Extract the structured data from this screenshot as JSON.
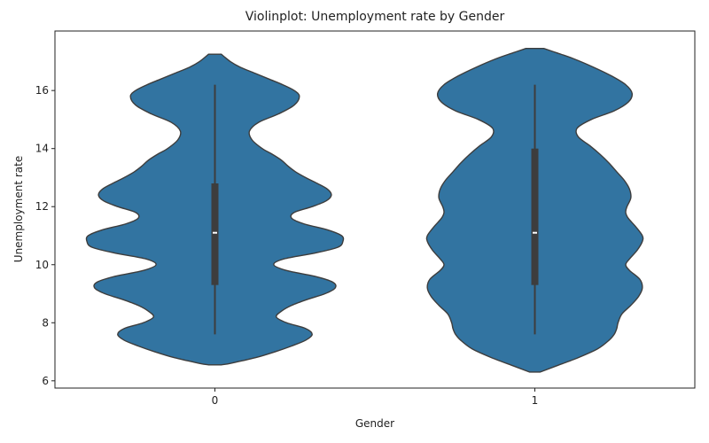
{
  "chart_data": {
    "type": "violin",
    "title": "Violinplot: Unemployment rate by Gender",
    "xlabel": "Gender",
    "ylabel": "Unemployment rate",
    "categories": [
      "0",
      "1"
    ],
    "ylim": [
      5.75,
      18.05
    ],
    "yticks": [
      6,
      8,
      10,
      12,
      14,
      16
    ],
    "grid": false,
    "fill_color": "#3274a1",
    "edge_color": "#3d3d3d",
    "violins": [
      {
        "category": "0",
        "whisker_low": 7.6,
        "q1": 9.3,
        "median": 11.1,
        "q3": 12.8,
        "whisker_high": 16.2,
        "density_profile": [
          [
            6.55,
            0.05
          ],
          [
            6.6,
            0.12
          ],
          [
            6.8,
            0.32
          ],
          [
            7.0,
            0.47
          ],
          [
            7.2,
            0.6
          ],
          [
            7.4,
            0.71
          ],
          [
            7.6,
            0.76
          ],
          [
            7.8,
            0.71
          ],
          [
            8.0,
            0.56
          ],
          [
            8.2,
            0.48
          ],
          [
            8.4,
            0.52
          ],
          [
            8.6,
            0.6
          ],
          [
            8.8,
            0.72
          ],
          [
            9.0,
            0.86
          ],
          [
            9.2,
            0.94
          ],
          [
            9.4,
            0.92
          ],
          [
            9.6,
            0.78
          ],
          [
            9.8,
            0.56
          ],
          [
            10.0,
            0.46
          ],
          [
            10.2,
            0.54
          ],
          [
            10.4,
            0.78
          ],
          [
            10.6,
            0.96
          ],
          [
            10.8,
            1.0
          ],
          [
            11.0,
            0.99
          ],
          [
            11.2,
            0.88
          ],
          [
            11.4,
            0.7
          ],
          [
            11.6,
            0.6
          ],
          [
            11.8,
            0.62
          ],
          [
            12.0,
            0.76
          ],
          [
            12.2,
            0.87
          ],
          [
            12.4,
            0.91
          ],
          [
            12.6,
            0.88
          ],
          [
            12.8,
            0.8
          ],
          [
            13.0,
            0.71
          ],
          [
            13.2,
            0.63
          ],
          [
            13.4,
            0.57
          ],
          [
            13.6,
            0.52
          ],
          [
            13.8,
            0.45
          ],
          [
            14.0,
            0.37
          ],
          [
            14.3,
            0.29
          ],
          [
            14.6,
            0.27
          ],
          [
            14.9,
            0.34
          ],
          [
            15.2,
            0.5
          ],
          [
            15.5,
            0.62
          ],
          [
            15.8,
            0.66
          ],
          [
            16.0,
            0.62
          ],
          [
            16.2,
            0.53
          ],
          [
            16.4,
            0.42
          ],
          [
            16.6,
            0.31
          ],
          [
            16.8,
            0.2
          ],
          [
            17.0,
            0.12
          ],
          [
            17.25,
            0.05
          ]
        ]
      },
      {
        "category": "1",
        "whisker_low": 7.6,
        "q1": 9.3,
        "median": 11.1,
        "q3": 14.0,
        "whisker_high": 16.2,
        "density_profile": [
          [
            6.3,
            0.04
          ],
          [
            6.5,
            0.16
          ],
          [
            6.8,
            0.34
          ],
          [
            7.1,
            0.49
          ],
          [
            7.4,
            0.58
          ],
          [
            7.6,
            0.62
          ],
          [
            7.8,
            0.64
          ],
          [
            8.0,
            0.65
          ],
          [
            8.3,
            0.68
          ],
          [
            8.6,
            0.75
          ],
          [
            8.9,
            0.81
          ],
          [
            9.2,
            0.84
          ],
          [
            9.5,
            0.82
          ],
          [
            9.8,
            0.74
          ],
          [
            10.0,
            0.71
          ],
          [
            10.2,
            0.74
          ],
          [
            10.5,
            0.8
          ],
          [
            10.8,
            0.84
          ],
          [
            11.0,
            0.84
          ],
          [
            11.3,
            0.79
          ],
          [
            11.6,
            0.73
          ],
          [
            11.8,
            0.71
          ],
          [
            12.0,
            0.72
          ],
          [
            12.3,
            0.75
          ],
          [
            12.6,
            0.74
          ],
          [
            12.9,
            0.7
          ],
          [
            13.2,
            0.64
          ],
          [
            13.5,
            0.58
          ],
          [
            13.8,
            0.51
          ],
          [
            14.1,
            0.43
          ],
          [
            14.4,
            0.34
          ],
          [
            14.7,
            0.33
          ],
          [
            15.0,
            0.44
          ],
          [
            15.3,
            0.62
          ],
          [
            15.6,
            0.73
          ],
          [
            15.9,
            0.76
          ],
          [
            16.2,
            0.71
          ],
          [
            16.5,
            0.6
          ],
          [
            16.8,
            0.46
          ],
          [
            17.1,
            0.3
          ],
          [
            17.3,
            0.17
          ],
          [
            17.45,
            0.07
          ]
        ]
      }
    ]
  }
}
